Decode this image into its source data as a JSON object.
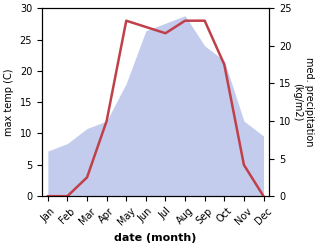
{
  "chart_data": {
    "type": "line",
    "categories": [
      "Jan",
      "Feb",
      "Mar",
      "Apr",
      "May",
      "Jun",
      "Jul",
      "Aug",
      "Sep",
      "Oct",
      "Nov",
      "Dec"
    ],
    "x_label": "date (month)",
    "y_label": "max temp (C)",
    "y2_label": "med. precipitation\n(kg/m2)",
    "series": [
      {
        "type": "area",
        "axis": "y2",
        "color": "#b0bce8",
        "values": [
          6,
          7,
          9,
          10,
          15,
          22,
          23,
          24,
          20,
          18,
          10,
          8
        ]
      },
      {
        "type": "line",
        "axis": "y",
        "color": "#c0404a",
        "values": [
          0,
          0,
          3,
          12,
          28,
          27,
          26,
          28,
          28,
          21,
          5,
          0
        ]
      }
    ],
    "ylim": [
      0,
      30
    ],
    "yticks": [
      0,
      5,
      10,
      15,
      20,
      25,
      30
    ],
    "y2lim": [
      0,
      25
    ],
    "y2ticks": [
      0,
      5,
      10,
      15,
      20,
      25
    ],
    "grid": false
  }
}
